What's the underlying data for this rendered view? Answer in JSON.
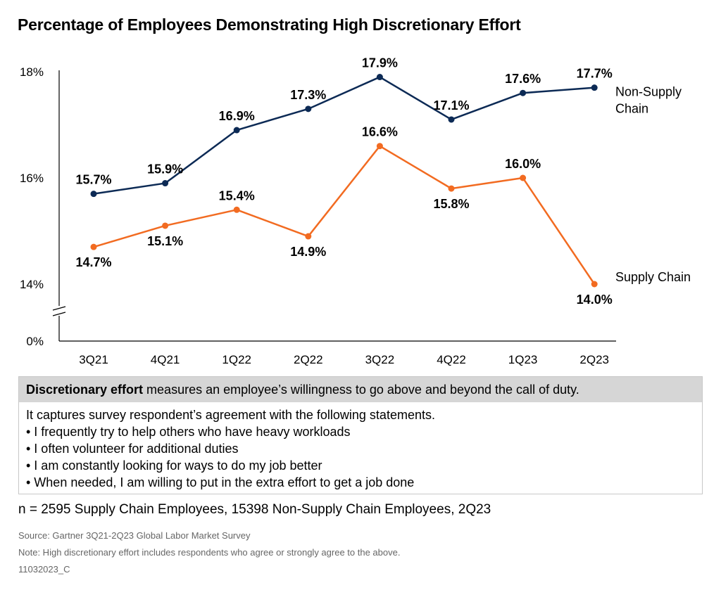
{
  "title": "Percentage of Employees Demonstrating High Discretionary Effort",
  "chart_data": {
    "type": "line",
    "categories": [
      "3Q21",
      "4Q21",
      "1Q22",
      "2Q22",
      "3Q22",
      "4Q22",
      "1Q23",
      "2Q23"
    ],
    "y_ticks": [
      "18%",
      "16%",
      "14%",
      "0%"
    ],
    "y_axis_break": true,
    "ylim": [
      13,
      18
    ],
    "series": [
      {
        "name": "Non-Supply Chain",
        "name_lines": [
          "Non-Supply",
          "Chain"
        ],
        "color": "#0c2a55",
        "values": [
          15.7,
          15.9,
          16.9,
          17.3,
          17.9,
          17.1,
          17.6,
          17.7
        ],
        "labels": [
          "15.7%",
          "15.9%",
          "16.9%",
          "17.3%",
          "17.9%",
          "17.1%",
          "17.6%",
          "17.7%"
        ]
      },
      {
        "name": "Supply Chain",
        "name_lines": [
          "Supply Chain"
        ],
        "color": "#f26b21",
        "values": [
          14.7,
          15.1,
          15.4,
          14.9,
          16.6,
          15.8,
          16.0,
          14.0
        ],
        "labels": [
          "14.7%",
          "15.1%",
          "15.4%",
          "14.9%",
          "16.6%",
          "15.8%",
          "16.0%",
          "14.0%"
        ]
      }
    ],
    "grid": false,
    "legend": "end-of-line labels"
  },
  "definition": {
    "term": "Discretionary effort",
    "header_rest": " measures an employee’s willingness to go above and beyond the call of duty.",
    "intro": "It captures survey respondent’s agreement with the following statements.",
    "bullets": [
      "• I frequently try to help others who have heavy workloads",
      "• I often volunteer for additional duties",
      "• I am constantly looking for ways to do my job better",
      "• When needed, I am willing to put in the extra effort to get a job done"
    ]
  },
  "sample_note": "n = 2595 Supply Chain Employees, 15398 Non-Supply Chain Employees, 2Q23",
  "footer": {
    "source": "Source: Gartner 3Q21-2Q23 Global Labor Market Survey",
    "note": "Note: High discretionary effort includes respondents who agree or strongly agree to the above.",
    "id": "11032023_C"
  }
}
